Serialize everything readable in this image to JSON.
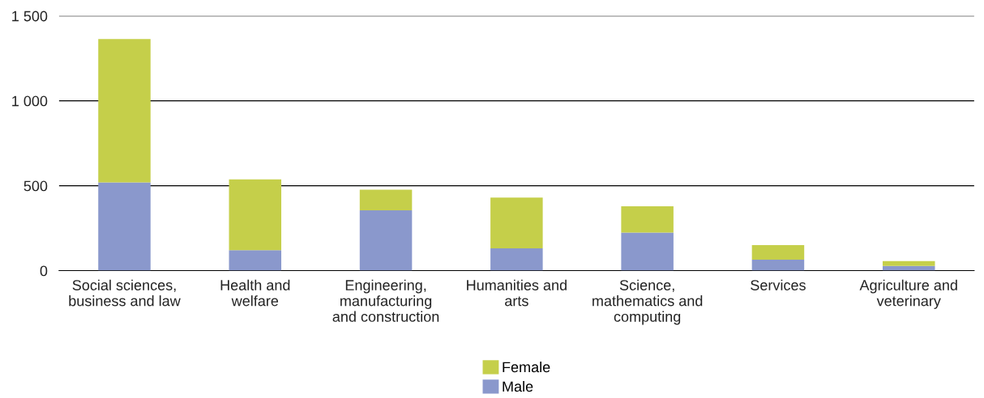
{
  "chart_data": {
    "type": "bar",
    "stacked": true,
    "categories": [
      "Social sciences,\nbusiness and law",
      "Health and\nwelfare",
      "Engineering,\nmanufacturing\nand construction",
      "Humanities and\narts",
      "Science,\nmathematics and\ncomputing",
      "Services",
      "Agriculture and\nveterinary"
    ],
    "series": [
      {
        "name": "Male",
        "color": "#8a98cc",
        "values": [
          519,
          121,
          355,
          131,
          224,
          65,
          28
        ]
      },
      {
        "name": "Female",
        "color": "#c5cf4a",
        "values": [
          845,
          416,
          122,
          299,
          155,
          85,
          28
        ]
      }
    ],
    "ylim": [
      0,
      1500
    ],
    "yticks": [
      0,
      {
        "value": 500,
        "label": "500"
      },
      {
        "value": 1000,
        "label": "1 000"
      },
      {
        "value": 1500,
        "label": "1 500"
      }
    ],
    "grid": "y",
    "legend": "bottom"
  }
}
